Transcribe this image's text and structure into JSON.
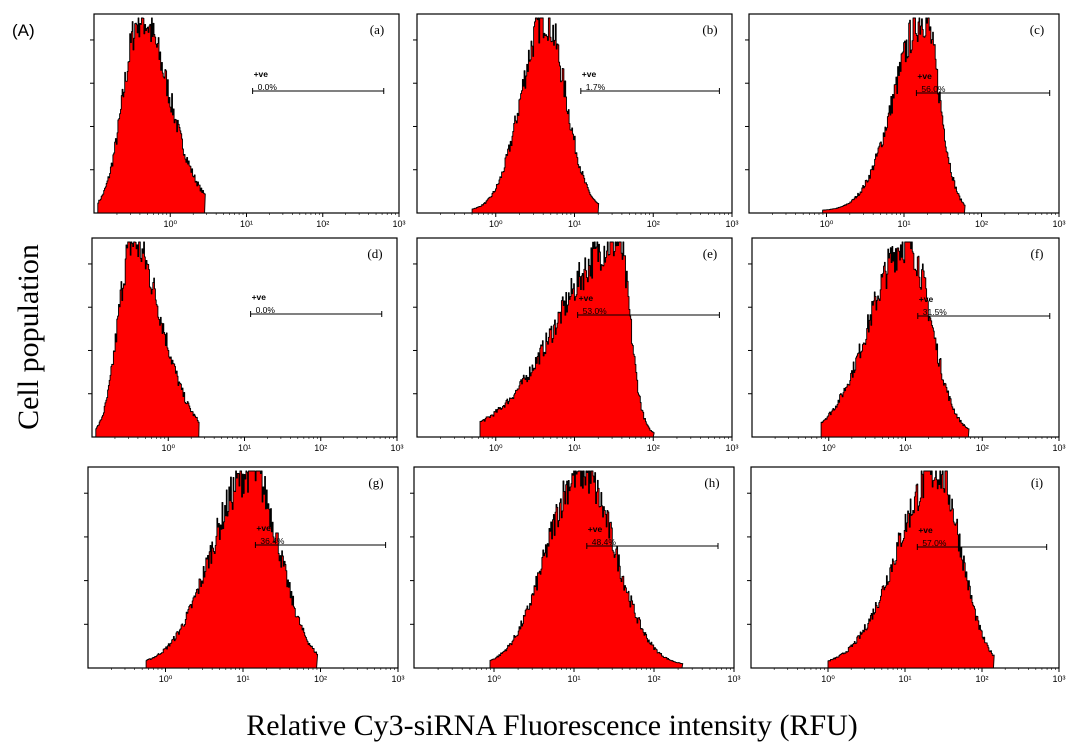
{
  "figure": {
    "panel_label": "(A)",
    "ylabel": "Cell population",
    "xlabel": "Relative Cy3-siRNA Fluorescence intensity (RFU)"
  },
  "colors": {
    "fill": "#ff0000",
    "outline": "#000000",
    "axis": "#000000"
  },
  "chart_data": [
    {
      "type": "area",
      "panel": "(a)",
      "gate_label": "+ve",
      "gate_value": "0.0%",
      "x_scale": "log",
      "xlim": [
        0.1,
        1000
      ],
      "x_ticks": [
        "10⁰",
        "10¹",
        "10²",
        "10³"
      ],
      "peak_log10_rfu": -0.4,
      "spread_low": 0.22,
      "spread_high": 0.38,
      "low_log10_rfu": -0.95,
      "high_log10_rfu": 0.45
    },
    {
      "type": "area",
      "panel": "(b)",
      "gate_label": "+ve",
      "gate_value": "1.7%",
      "x_scale": "log",
      "xlim": [
        0.1,
        1000
      ],
      "x_ticks": [
        "10⁰",
        "10¹",
        "10²",
        "10³"
      ],
      "peak_log10_rfu": 0.62,
      "spread_low": 0.3,
      "spread_high": 0.26,
      "low_log10_rfu": -0.3,
      "high_log10_rfu": 1.3
    },
    {
      "type": "area",
      "panel": "(c)",
      "gate_label": "+ve",
      "gate_value": "56.0%",
      "x_scale": "log",
      "xlim": [
        0.1,
        1000
      ],
      "x_ticks": [
        "10⁰",
        "10¹",
        "10²",
        "10³"
      ],
      "peak_log10_rfu": 1.25,
      "spread_low": 0.38,
      "spread_high": 0.2,
      "low_log10_rfu": -0.05,
      "high_log10_rfu": 1.78
    },
    {
      "type": "area",
      "panel": "(d)",
      "gate_label": "+ve",
      "gate_value": "0.0%",
      "x_scale": "log",
      "xlim": [
        0.1,
        1000
      ],
      "x_ticks": [
        "10⁰",
        "10¹",
        "10²",
        "10³"
      ],
      "peak_log10_rfu": -0.48,
      "spread_low": 0.18,
      "spread_high": 0.38,
      "low_log10_rfu": -0.95,
      "high_log10_rfu": 0.4
    },
    {
      "type": "area",
      "panel": "(e)",
      "gate_label": "+ve",
      "gate_value": "53.0%",
      "x_scale": "log",
      "xlim": [
        0.1,
        1000
      ],
      "x_ticks": [
        "10⁰",
        "10¹",
        "10²",
        "10³"
      ],
      "peak_log10_rfu": 1.55,
      "spread_low": 0.75,
      "spread_high": 0.15,
      "low_log10_rfu": -0.2,
      "high_log10_rfu": 2.0
    },
    {
      "type": "area",
      "panel": "(f)",
      "gate_label": "+ve",
      "gate_value": "31.5%",
      "x_scale": "log",
      "xlim": [
        0.1,
        1000
      ],
      "x_ticks": [
        "10⁰",
        "10¹",
        "10²",
        "10³"
      ],
      "peak_log10_rfu": 1.02,
      "spread_low": 0.48,
      "spread_high": 0.3,
      "low_log10_rfu": -0.1,
      "high_log10_rfu": 1.82
    },
    {
      "type": "area",
      "panel": "(g)",
      "gate_label": "+ve",
      "gate_value": "36.4%",
      "x_scale": "log",
      "xlim": [
        0.1,
        1000
      ],
      "x_ticks": [
        "10⁰",
        "10¹",
        "10²",
        "10³"
      ],
      "peak_log10_rfu": 1.1,
      "spread_low": 0.5,
      "spread_high": 0.36,
      "low_log10_rfu": -0.25,
      "high_log10_rfu": 1.95
    },
    {
      "type": "area",
      "panel": "(h)",
      "gate_label": "+ve",
      "gate_value": "48.4%",
      "x_scale": "log",
      "xlim": [
        0.1,
        1000
      ],
      "x_ticks": [
        "10⁰",
        "10¹",
        "10²",
        "10³"
      ],
      "peak_log10_rfu": 1.08,
      "spread_low": 0.42,
      "spread_high": 0.42,
      "low_log10_rfu": -0.05,
      "high_log10_rfu": 2.35
    },
    {
      "type": "area",
      "panel": "(i)",
      "gate_label": "+ve",
      "gate_value": "57.0%",
      "x_scale": "log",
      "xlim": [
        0.1,
        1000
      ],
      "x_ticks": [
        "10⁰",
        "10¹",
        "10²",
        "10³"
      ],
      "peak_log10_rfu": 1.42,
      "spread_low": 0.52,
      "spread_high": 0.3,
      "low_log10_rfu": 0.0,
      "high_log10_rfu": 2.15
    }
  ]
}
